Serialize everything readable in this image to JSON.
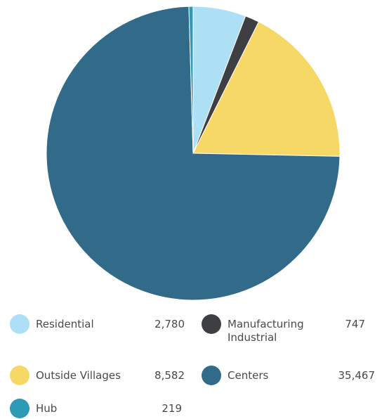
{
  "chart_data": {
    "type": "pie",
    "title": "",
    "categories": [
      "Residential",
      "Manufacturing Industrial",
      "Outside Villages",
      "Centers",
      "Hub"
    ],
    "values": [
      2780,
      747,
      8582,
      35467,
      219
    ],
    "value_labels": [
      "2,780",
      "747",
      "8,582",
      "35,467",
      "219"
    ],
    "colors": [
      "#aee0f5",
      "#3d3f42",
      "#f6d866",
      "#326b8a",
      "#2e9ab5"
    ],
    "legend_position": "bottom"
  },
  "legend": [
    {
      "label": "Residential",
      "value": "2,780",
      "color": "#aee0f5"
    },
    {
      "label": "Manufacturing\nIndustrial",
      "value": "747",
      "color": "#3d3f42"
    },
    {
      "label": "Outside Villages",
      "value": "8,582",
      "color": "#f6d866"
    },
    {
      "label": "Centers",
      "value": "35,467",
      "color": "#326b8a"
    },
    {
      "label": "Hub",
      "value": "219",
      "color": "#2e9ab5"
    }
  ]
}
